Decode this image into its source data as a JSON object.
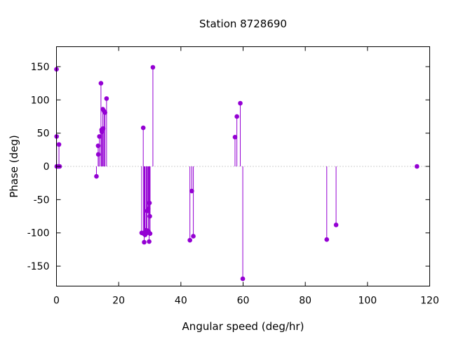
{
  "chart_data": {
    "type": "scatter",
    "title": "Station 8728690",
    "xlabel": "Angular speed (deg/hr)",
    "ylabel": "Phase (deg)",
    "xlim": [
      0,
      120
    ],
    "ylim": [
      -180,
      180
    ],
    "xticks": [
      0,
      20,
      40,
      60,
      80,
      100,
      120
    ],
    "yticks": [
      -150,
      -100,
      -50,
      0,
      50,
      100,
      150
    ],
    "grid": false,
    "legend": "none",
    "style": "impulses with points",
    "color": "#9400d3",
    "zero_line_color": "#a0a0a0",
    "points": [
      {
        "x": 0.0,
        "y": 146
      },
      {
        "x": 0.04,
        "y": 45
      },
      {
        "x": 0.08,
        "y": 0
      },
      {
        "x": 0.5,
        "y": 0
      },
      {
        "x": 0.8,
        "y": 33
      },
      {
        "x": 1.0,
        "y": 0
      },
      {
        "x": 12.85,
        "y": -15
      },
      {
        "x": 13.4,
        "y": 31
      },
      {
        "x": 13.45,
        "y": 18
      },
      {
        "x": 13.8,
        "y": 45
      },
      {
        "x": 14.3,
        "y": 125
      },
      {
        "x": 14.5,
        "y": 55
      },
      {
        "x": 14.6,
        "y": 52
      },
      {
        "x": 14.9,
        "y": 86
      },
      {
        "x": 15.0,
        "y": 57
      },
      {
        "x": 15.3,
        "y": 83
      },
      {
        "x": 15.6,
        "y": 81
      },
      {
        "x": 16.1,
        "y": 102
      },
      {
        "x": 27.4,
        "y": -100
      },
      {
        "x": 27.9,
        "y": 58
      },
      {
        "x": 28.0,
        "y": -101
      },
      {
        "x": 28.2,
        "y": -114
      },
      {
        "x": 28.4,
        "y": -99
      },
      {
        "x": 28.5,
        "y": -103
      },
      {
        "x": 28.9,
        "y": -96
      },
      {
        "x": 29.1,
        "y": -100
      },
      {
        "x": 29.2,
        "y": -67
      },
      {
        "x": 29.5,
        "y": -64
      },
      {
        "x": 29.6,
        "y": -98
      },
      {
        "x": 29.8,
        "y": -113
      },
      {
        "x": 29.9,
        "y": -55
      },
      {
        "x": 30.0,
        "y": -75
      },
      {
        "x": 30.1,
        "y": -101
      },
      {
        "x": 31.0,
        "y": 149
      },
      {
        "x": 42.9,
        "y": -111
      },
      {
        "x": 43.5,
        "y": -37
      },
      {
        "x": 44.0,
        "y": -105
      },
      {
        "x": 57.4,
        "y": 44
      },
      {
        "x": 58.0,
        "y": 75
      },
      {
        "x": 59.1,
        "y": 95
      },
      {
        "x": 59.9,
        "y": -169
      },
      {
        "x": 86.9,
        "y": -110
      },
      {
        "x": 89.9,
        "y": -88
      },
      {
        "x": 115.9,
        "y": 0
      }
    ]
  }
}
